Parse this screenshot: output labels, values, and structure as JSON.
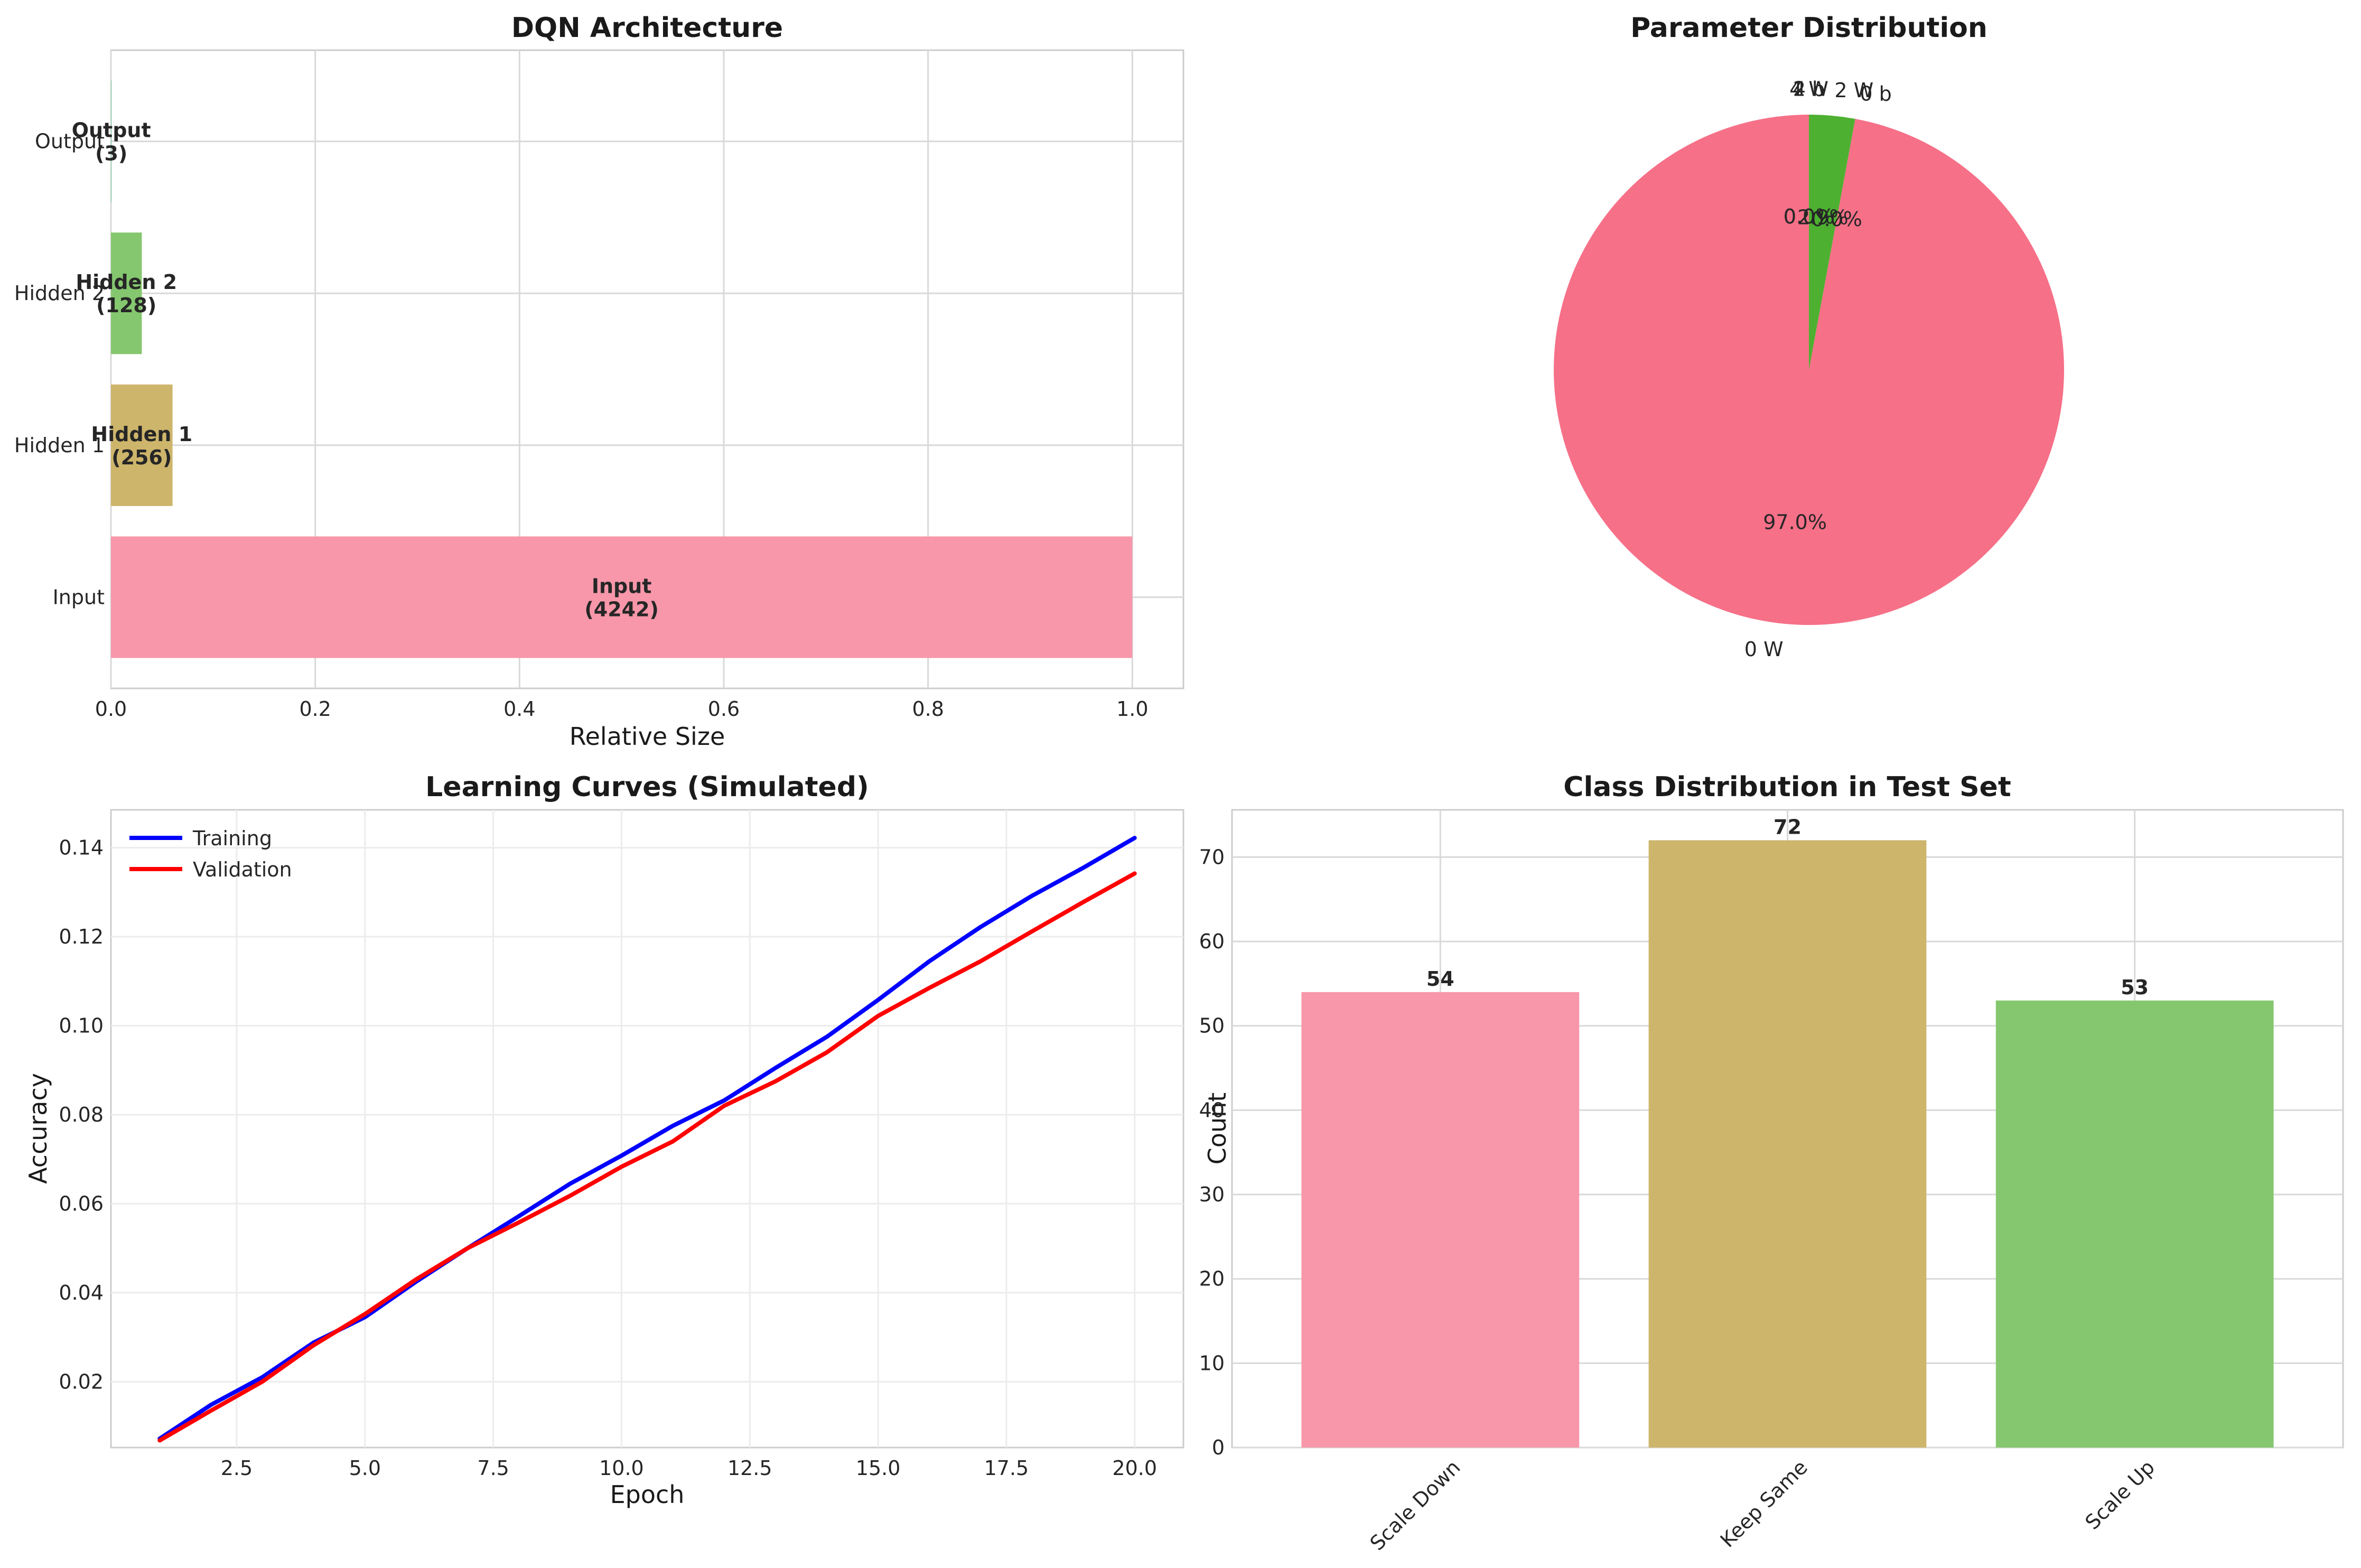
{
  "chart_data": [
    {
      "type": "bar",
      "orientation": "horizontal",
      "title": "DQN Architecture",
      "xlabel": "Relative Size",
      "ylabel": "",
      "xlim": [
        0,
        1.05
      ],
      "xticks": [
        "0.0",
        "0.2",
        "0.4",
        "0.6",
        "0.8",
        "1.0"
      ],
      "categories": [
        "Input",
        "Hidden 1",
        "Hidden 2",
        "Output"
      ],
      "values": [
        1.0,
        0.0603,
        0.0302,
        0.0007
      ],
      "bar_labels": [
        [
          "Input",
          "(4242)"
        ],
        [
          "Hidden 1",
          "(256)"
        ],
        [
          "Hidden 2",
          "(128)"
        ],
        [
          "Output",
          "(3)"
        ]
      ],
      "colors": [
        "#f797a9",
        "#cdb56b",
        "#85c76e",
        "#8fd0b0"
      ],
      "grid": true
    },
    {
      "type": "pie",
      "title": "Parameter Distribution",
      "labels": [
        "0 W",
        "0 b",
        "2 W",
        "2 b",
        "4 W",
        "4 b"
      ],
      "values": [
        97.0,
        0.0,
        2.9,
        0.0,
        0.0,
        0.0
      ],
      "pct_labels": [
        "97.0%",
        "0.0%",
        "2.9%",
        "0.0%",
        "0.0%",
        "0.0%"
      ],
      "colors": [
        "#f67088",
        "#ce9032",
        "#4eb031",
        "#37a98e",
        "#3ba3ec",
        "#f560e1"
      ]
    },
    {
      "type": "line",
      "title": "Learning Curves (Simulated)",
      "xlabel": "Epoch",
      "ylabel": "Accuracy",
      "xlim": [
        0.05,
        20.95
      ],
      "ylim": [
        0.0052,
        0.1485
      ],
      "xticks": [
        "2.5",
        "5.0",
        "7.5",
        "10.0",
        "12.5",
        "15.0",
        "17.5",
        "20.0"
      ],
      "yticks": [
        "0.02",
        "0.04",
        "0.06",
        "0.08",
        "0.10",
        "0.12",
        "0.14"
      ],
      "x": [
        1,
        2,
        3,
        4,
        5,
        6,
        7,
        8,
        9,
        10,
        11,
        12,
        13,
        14,
        15,
        16,
        17,
        18,
        19,
        20
      ],
      "series": [
        {
          "name": "Training",
          "color": "#0000ff",
          "values": [
            0.0072,
            0.0148,
            0.021,
            0.0288,
            0.0345,
            0.0425,
            0.05,
            0.0572,
            0.0645,
            0.0708,
            0.0775,
            0.0832,
            0.0905,
            0.0975,
            0.1058,
            0.1145,
            0.1222,
            0.1292,
            0.1355,
            0.1422
          ]
        },
        {
          "name": "Validation",
          "color": "#ff0000",
          "values": [
            0.0068,
            0.0135,
            0.02,
            0.0282,
            0.0352,
            0.043,
            0.05,
            0.0558,
            0.0618,
            0.0683,
            0.074,
            0.082,
            0.0875,
            0.094,
            0.1022,
            0.1085,
            0.1145,
            0.1212,
            0.1278,
            0.1342
          ]
        }
      ],
      "legend": "top-left",
      "grid": true
    },
    {
      "type": "bar",
      "title": "Class Distribution in Test Set",
      "xlabel": "",
      "ylabel": "Count",
      "ylim": [
        0,
        75.6
      ],
      "yticks": [
        "0",
        "10",
        "20",
        "30",
        "40",
        "50",
        "60",
        "70"
      ],
      "categories": [
        "Scale Down",
        "Keep Same",
        "Scale Up"
      ],
      "values": [
        54,
        72,
        53
      ],
      "value_labels": [
        "54",
        "72",
        "53"
      ],
      "colors": [
        "#f797a9",
        "#cdb56b",
        "#85c76e"
      ],
      "grid": true
    }
  ]
}
